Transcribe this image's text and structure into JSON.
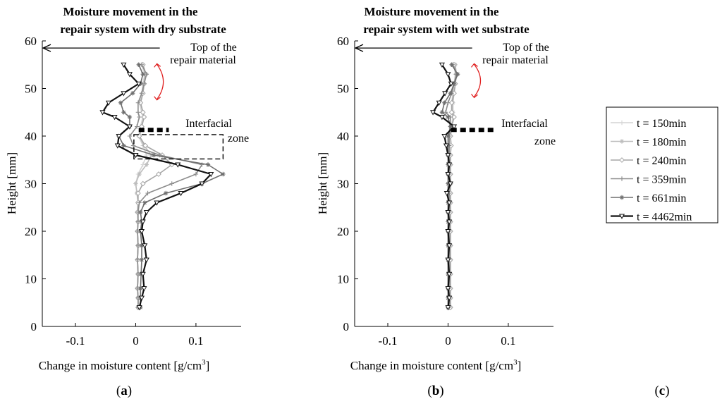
{
  "chart_data": [
    {
      "type": "line",
      "panel_label": "a",
      "title_lines": [
        "Moisture movement in the",
        "repair system with dry substrate"
      ],
      "xlabel": "Change in moisture content [g/cm",
      "xlabel_sup": "3",
      "xlabel_close": "]",
      "ylabel": "Height [mm]",
      "xlim": [
        -0.155,
        0.175
      ],
      "ylim": [
        0,
        60
      ],
      "xticks": [
        -0.1,
        0,
        0.1
      ],
      "xtick_labels": [
        "-0.1",
        "0",
        "0.1"
      ],
      "yticks": [
        0,
        10,
        20,
        30,
        40,
        50,
        60
      ],
      "ytick_labels": [
        "0",
        "10",
        "20",
        "30",
        "40",
        "50",
        "60"
      ],
      "annotations": {
        "top_lines": [
          "Top of the",
          "repair material"
        ],
        "top_arrow": {
          "x_from": 0.04,
          "x_to": -0.155,
          "y": 58.5
        },
        "interface_lines": [
          "Interfacial",
          "zone"
        ],
        "interface_line": {
          "x_from": 0.005,
          "x_to": 0.055,
          "y": 41.3
        },
        "dashed_box": {
          "x0": -0.003,
          "x1": 0.145,
          "y0": 35.2,
          "y1": 40.3
        },
        "red_arrow": {
          "x": 0.04,
          "y_top": 55.5,
          "y_bottom": 47.3
        }
      },
      "series": [
        {
          "name": "t = 150min",
          "color": "#d4d4d4",
          "marker": "plus",
          "x": [
            0.01,
            0.015,
            0.012,
            0.01,
            0.006,
            0.01,
            0.012,
            0.008,
            0.005,
            0.012,
            0.018,
            0.012,
            0.004,
            0.0,
            0.002,
            0.004,
            0.003,
            0.004,
            0.003,
            0.004,
            0.003,
            0.004,
            0.003,
            0.004,
            0.004
          ],
          "y": [
            55,
            53,
            51,
            49,
            47,
            45,
            44,
            42,
            40,
            38,
            36,
            34,
            32,
            30,
            28,
            26,
            24,
            22,
            20,
            17,
            14,
            11,
            8,
            6,
            4
          ]
        },
        {
          "name": "t = 180min",
          "color": "#bdbdbd",
          "marker": "star",
          "x": [
            0.012,
            0.016,
            0.014,
            0.012,
            0.008,
            0.012,
            0.014,
            0.01,
            0.006,
            0.014,
            0.026,
            0.018,
            0.006,
            0.0,
            0.002,
            0.004,
            0.003,
            0.004,
            0.003,
            0.004,
            0.003,
            0.004,
            0.003,
            0.004,
            0.004
          ],
          "y": [
            55,
            53,
            51,
            49,
            47,
            45,
            44,
            42,
            40,
            38,
            36,
            34,
            32,
            30,
            28,
            26,
            24,
            22,
            20,
            17,
            14,
            11,
            8,
            6,
            4
          ]
        },
        {
          "name": "t = 240min",
          "color": "#a6a6a6",
          "marker": "diamond",
          "x": [
            0.012,
            0.017,
            0.014,
            0.012,
            0.008,
            0.012,
            0.014,
            0.01,
            0.006,
            0.016,
            0.044,
            0.06,
            0.038,
            0.012,
            0.004,
            0.004,
            0.003,
            0.004,
            0.003,
            0.004,
            0.003,
            0.004,
            0.003,
            0.004,
            0.004
          ],
          "y": [
            55,
            53,
            51,
            49,
            47,
            45,
            44,
            42,
            40,
            38,
            36,
            34,
            32,
            30,
            28,
            26,
            24,
            22,
            20,
            17,
            14,
            11,
            8,
            6,
            4
          ]
        },
        {
          "name": "t = 359min",
          "color": "#8c8c8c",
          "marker": "plus",
          "x": [
            0.01,
            0.018,
            0.014,
            0.01,
            0.004,
            0.004,
            0.006,
            0.002,
            -0.01,
            -0.004,
            0.04,
            0.11,
            0.1,
            0.06,
            0.02,
            0.006,
            0.004,
            0.004,
            0.003,
            0.004,
            0.003,
            0.004,
            0.003,
            0.004,
            0.004
          ],
          "y": [
            55,
            53,
            51,
            49,
            47,
            45,
            44,
            42,
            40,
            38,
            36,
            34,
            32,
            30,
            28,
            26,
            24,
            22,
            20,
            17,
            14,
            11,
            8,
            6,
            4
          ]
        },
        {
          "name": "t = 661min",
          "color": "#6e6e6e",
          "marker": "star",
          "x": [
            0.005,
            0.012,
            0.008,
            -0.005,
            -0.025,
            -0.02,
            -0.01,
            -0.01,
            -0.028,
            -0.02,
            0.03,
            0.12,
            0.145,
            0.11,
            0.05,
            0.015,
            0.008,
            0.01,
            0.008,
            0.01,
            0.01,
            0.009,
            0.008,
            0.008,
            0.008
          ],
          "y": [
            55,
            53,
            51,
            49,
            47,
            45,
            44,
            42,
            40,
            38,
            36,
            34,
            32,
            30,
            28,
            26,
            24,
            22,
            20,
            17,
            14,
            11,
            8,
            6,
            4
          ]
        },
        {
          "name": "t = 4462min",
          "color": "#111111",
          "marker": "triangle",
          "x": [
            -0.02,
            -0.01,
            0.005,
            -0.02,
            -0.045,
            -0.055,
            -0.035,
            -0.01,
            -0.028,
            -0.03,
            0.0,
            0.07,
            0.125,
            0.11,
            0.075,
            0.035,
            0.018,
            0.012,
            0.01,
            0.015,
            0.018,
            0.012,
            0.014,
            0.01,
            0.006
          ],
          "y": [
            55,
            53,
            51,
            49,
            47,
            45,
            44,
            42,
            40,
            38,
            36,
            34,
            32,
            30,
            28,
            26,
            24,
            22,
            20,
            17,
            14,
            11,
            8,
            6,
            4
          ]
        }
      ]
    },
    {
      "type": "line",
      "panel_label": "b",
      "title_lines": [
        "Moisture movement in the",
        "repair system with wet substrate"
      ],
      "xlabel": "Change in moisture content [g/cm",
      "xlabel_sup": "3",
      "xlabel_close": "]",
      "ylabel": "Height [mm]",
      "xlim": [
        -0.155,
        0.175
      ],
      "ylim": [
        0,
        60
      ],
      "xticks": [
        -0.1,
        0,
        0.1
      ],
      "xtick_labels": [
        "-0.1",
        "0",
        "0.1"
      ],
      "yticks": [
        0,
        10,
        20,
        30,
        40,
        50,
        60
      ],
      "ytick_labels": [
        "0",
        "10",
        "20",
        "30",
        "40",
        "50",
        "60"
      ],
      "annotations": {
        "top_lines": [
          "Top of the",
          "repair material"
        ],
        "top_arrow": {
          "x_from": 0.04,
          "x_to": -0.155,
          "y": 58.5
        },
        "interface_lines": [
          "Interfacial",
          "zone"
        ],
        "interface_line": {
          "x_from": 0.005,
          "x_to": 0.08,
          "y": 41.3
        },
        "red_arrow": {
          "x": 0.048,
          "y_top": 55.5,
          "y_bottom": 47.8
        }
      },
      "series": [
        {
          "name": "t = 150min",
          "color": "#d4d4d4",
          "marker": "plus",
          "x": [
            0.01,
            0.012,
            0.01,
            0.008,
            0.006,
            0.006,
            0.008,
            0.006,
            0.004,
            0.005,
            0.004,
            0.004,
            0.004,
            0.004,
            0.004,
            0.004,
            0.004,
            0.004,
            0.004,
            0.004,
            0.004,
            0.004,
            0.004,
            0.004,
            0.004
          ],
          "y": [
            55,
            53,
            51,
            49,
            47,
            45,
            44,
            42,
            40,
            38,
            36,
            34,
            32,
            30,
            28,
            26,
            24,
            22,
            20,
            17,
            14,
            11,
            8,
            6,
            4
          ]
        },
        {
          "name": "t = 180min",
          "color": "#bdbdbd",
          "marker": "star",
          "x": [
            0.012,
            0.014,
            0.012,
            0.01,
            0.008,
            0.008,
            0.01,
            0.006,
            0.004,
            0.005,
            0.004,
            0.004,
            0.004,
            0.004,
            0.004,
            0.004,
            0.004,
            0.004,
            0.004,
            0.004,
            0.004,
            0.004,
            0.004,
            0.004,
            0.004
          ],
          "y": [
            55,
            53,
            51,
            49,
            47,
            45,
            44,
            42,
            40,
            38,
            36,
            34,
            32,
            30,
            28,
            26,
            24,
            22,
            20,
            17,
            14,
            11,
            8,
            6,
            4
          ]
        },
        {
          "name": "t = 240min",
          "color": "#a6a6a6",
          "marker": "diamond",
          "x": [
            0.01,
            0.014,
            0.012,
            0.01,
            0.006,
            0.006,
            0.01,
            0.006,
            0.004,
            0.005,
            0.004,
            0.004,
            0.004,
            0.004,
            0.004,
            0.004,
            0.004,
            0.004,
            0.004,
            0.004,
            0.004,
            0.004,
            0.004,
            0.004,
            0.004
          ],
          "y": [
            55,
            53,
            51,
            49,
            47,
            45,
            44,
            42,
            40,
            38,
            36,
            34,
            32,
            30,
            28,
            26,
            24,
            22,
            20,
            17,
            14,
            11,
            8,
            6,
            4
          ]
        },
        {
          "name": "t = 359min",
          "color": "#8c8c8c",
          "marker": "plus",
          "x": [
            0.008,
            0.014,
            0.01,
            0.006,
            0.0,
            -0.004,
            0.004,
            0.004,
            0.002,
            0.002,
            0.002,
            0.002,
            0.002,
            0.002,
            0.002,
            0.002,
            0.002,
            0.002,
            0.002,
            0.002,
            0.002,
            0.002,
            0.002,
            0.002,
            0.002
          ],
          "y": [
            55,
            53,
            51,
            49,
            47,
            45,
            44,
            42,
            40,
            38,
            36,
            34,
            32,
            30,
            28,
            26,
            24,
            22,
            20,
            17,
            14,
            11,
            8,
            6,
            4
          ]
        },
        {
          "name": "t = 661min",
          "color": "#6e6e6e",
          "marker": "star",
          "x": [
            0.006,
            0.016,
            0.01,
            0.004,
            -0.006,
            -0.01,
            0.0,
            0.004,
            0.0,
            0.0,
            0.0,
            0.0,
            0.0,
            0.0,
            0.0,
            0.0,
            0.0,
            0.0,
            0.0,
            0.0,
            0.0,
            0.0,
            0.0,
            0.0,
            0.0
          ],
          "y": [
            55,
            53,
            51,
            49,
            47,
            45,
            44,
            42,
            40,
            38,
            36,
            34,
            32,
            30,
            28,
            26,
            24,
            22,
            20,
            17,
            14,
            11,
            8,
            6,
            4
          ]
        },
        {
          "name": "t = 4462min",
          "color": "#111111",
          "marker": "triangle",
          "x": [
            -0.01,
            0.0,
            0.005,
            -0.005,
            -0.015,
            -0.025,
            -0.01,
            0.01,
            -0.006,
            -0.003,
            0.0,
            0.002,
            0.0,
            0.004,
            -0.002,
            0.002,
            0.0,
            0.002,
            0.0,
            0.002,
            0.0,
            0.002,
            0.0,
            0.002,
            0.0
          ],
          "y": [
            55,
            53,
            51,
            49,
            47,
            45,
            44,
            42,
            40,
            38,
            36,
            34,
            32,
            30,
            28,
            26,
            24,
            22,
            20,
            17,
            14,
            11,
            8,
            6,
            4
          ]
        }
      ]
    }
  ],
  "legend": {
    "entries": [
      "t = 150min",
      "t = 180min",
      "t = 240min",
      "t = 359min",
      "t = 661min",
      "t = 4462min"
    ]
  },
  "panel_c_label": "c",
  "colors": {
    "annotation_arrow": "#e02020",
    "axis": "#000000"
  }
}
